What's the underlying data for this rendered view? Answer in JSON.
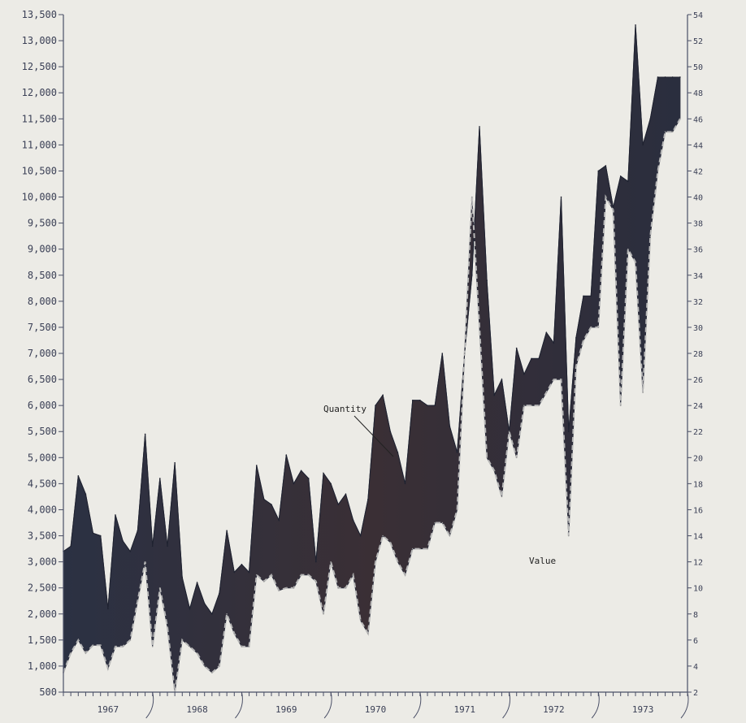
{
  "chart_data": {
    "type": "area",
    "title": "",
    "xlabel": "",
    "ylabel": "",
    "ylim": [
      500,
      13500
    ],
    "y2lim": [
      2,
      54
    ],
    "y_ticks": [
      "13,500",
      "13,000",
      "12,500",
      "12,000",
      "11,500",
      "11,000",
      "10,500",
      "10,000",
      "9,500",
      "9,000",
      "8,500",
      "8,000",
      "7,500",
      "7,000",
      "6,500",
      "6,000",
      "5,500",
      "5,000",
      "4,500",
      "4,000",
      "3,500",
      "3,000",
      "2,500",
      "2,000",
      "1,500",
      "1,000",
      "500"
    ],
    "y2_ticks": [
      "54",
      "52",
      "50",
      "48",
      "46",
      "44",
      "42",
      "40",
      "38",
      "36",
      "34",
      "32",
      "30",
      "28",
      "26",
      "24",
      "22",
      "20",
      "18",
      "16",
      "14",
      "12",
      "10",
      "8",
      "6",
      "4",
      "2"
    ],
    "x_years": [
      "1967",
      "1968",
      "1969",
      "1970",
      "1971",
      "1972",
      "1973"
    ],
    "x_range": [
      1967,
      1974
    ],
    "annotations": {
      "quantity": "Quantity",
      "value": "Value"
    },
    "fill_color": "#2e3140",
    "value_line_color": "#b8b8b8",
    "series": [
      {
        "name": "Quantity",
        "axis": "left",
        "x": [
          1967.0,
          1967.083,
          1967.167,
          1967.25,
          1967.333,
          1967.417,
          1967.5,
          1967.583,
          1967.667,
          1967.75,
          1967.833,
          1967.917,
          1968.0,
          1968.083,
          1968.167,
          1968.25,
          1968.333,
          1968.417,
          1968.5,
          1968.583,
          1968.667,
          1968.75,
          1968.833,
          1968.917,
          1969.0,
          1969.083,
          1969.167,
          1969.25,
          1969.333,
          1969.417,
          1969.5,
          1969.583,
          1969.667,
          1969.75,
          1969.833,
          1969.917,
          1970.0,
          1970.083,
          1970.167,
          1970.25,
          1970.333,
          1970.417,
          1970.5,
          1970.583,
          1970.667,
          1970.75,
          1970.833,
          1970.917,
          1971.0,
          1971.083,
          1971.167,
          1971.25,
          1971.333,
          1971.417,
          1971.5,
          1971.583,
          1971.667,
          1971.75,
          1971.833,
          1971.917,
          1972.0,
          1972.083,
          1972.167,
          1972.25,
          1972.333,
          1972.417,
          1972.5,
          1972.583,
          1972.667,
          1972.75,
          1972.833,
          1972.917,
          1973.0,
          1973.083,
          1973.167,
          1973.25,
          1973.333,
          1973.417,
          1973.5,
          1973.583,
          1973.667,
          1973.75,
          1973.833,
          1973.917
        ],
        "values": [
          3200,
          3300,
          4650,
          4300,
          3550,
          3500,
          2100,
          3900,
          3400,
          3200,
          3600,
          5450,
          3300,
          4600,
          3300,
          4900,
          2700,
          2100,
          2600,
          2200,
          2000,
          2400,
          3600,
          2800,
          2950,
          2800,
          4850,
          4200,
          4100,
          3800,
          5050,
          4500,
          4750,
          4600,
          3000,
          4700,
          4500,
          4100,
          4300,
          3800,
          3500,
          4200,
          6000,
          6200,
          5500,
          5100,
          4500,
          6100,
          6100,
          6000,
          6000,
          7000,
          5600,
          5100,
          7000,
          8500,
          11350,
          8400,
          6200,
          6500,
          5500,
          7100,
          6600,
          6900,
          6900,
          7400,
          7200,
          10000,
          5500,
          7300,
          8100,
          8100,
          10500,
          10600,
          9800,
          10400,
          10300,
          13300,
          11000,
          11500,
          12300,
          12300,
          12300,
          12300
        ]
      },
      {
        "name": "Value",
        "axis": "right",
        "x": [
          1967.0,
          1967.083,
          1967.167,
          1967.25,
          1967.333,
          1967.417,
          1967.5,
          1967.583,
          1967.667,
          1967.75,
          1967.833,
          1967.917,
          1968.0,
          1968.083,
          1968.167,
          1968.25,
          1968.333,
          1968.417,
          1968.5,
          1968.583,
          1968.667,
          1968.75,
          1968.833,
          1968.917,
          1969.0,
          1969.083,
          1969.167,
          1969.25,
          1969.333,
          1969.417,
          1969.5,
          1969.583,
          1969.667,
          1969.75,
          1969.833,
          1969.917,
          1970.0,
          1970.083,
          1970.167,
          1970.25,
          1970.333,
          1970.417,
          1970.5,
          1970.583,
          1970.667,
          1970.75,
          1970.833,
          1970.917,
          1971.0,
          1971.083,
          1971.167,
          1971.25,
          1971.333,
          1971.417,
          1971.5,
          1971.583,
          1971.667,
          1971.75,
          1971.833,
          1971.917,
          1972.0,
          1972.083,
          1972.167,
          1972.25,
          1972.333,
          1972.417,
          1972.5,
          1972.583,
          1972.667,
          1972.75,
          1972.833,
          1972.917,
          1973.0,
          1973.083,
          1973.167,
          1973.25,
          1973.333,
          1973.417,
          1973.5,
          1973.583,
          1973.667,
          1973.75,
          1973.833,
          1973.917
        ],
        "values": [
          3.5,
          5,
          6,
          5,
          5.6,
          5.6,
          3.8,
          5.5,
          5.5,
          6,
          9,
          12,
          5.5,
          10,
          7,
          2,
          6,
          5.5,
          5,
          4,
          3.5,
          4,
          8,
          6.5,
          5.5,
          5.5,
          11,
          10.5,
          11,
          9.8,
          10,
          10,
          11,
          11,
          10.5,
          8,
          12,
          10,
          10,
          11,
          7.5,
          6.5,
          12,
          14,
          13.5,
          12,
          11,
          13,
          13,
          13,
          15,
          15,
          14,
          16,
          28,
          40,
          30,
          20,
          19,
          17,
          22,
          20,
          24,
          24,
          24,
          25,
          26,
          26,
          14,
          27,
          29,
          30,
          30,
          40,
          39,
          24,
          36,
          35,
          25,
          37,
          42,
          45,
          45,
          46
        ]
      }
    ]
  }
}
